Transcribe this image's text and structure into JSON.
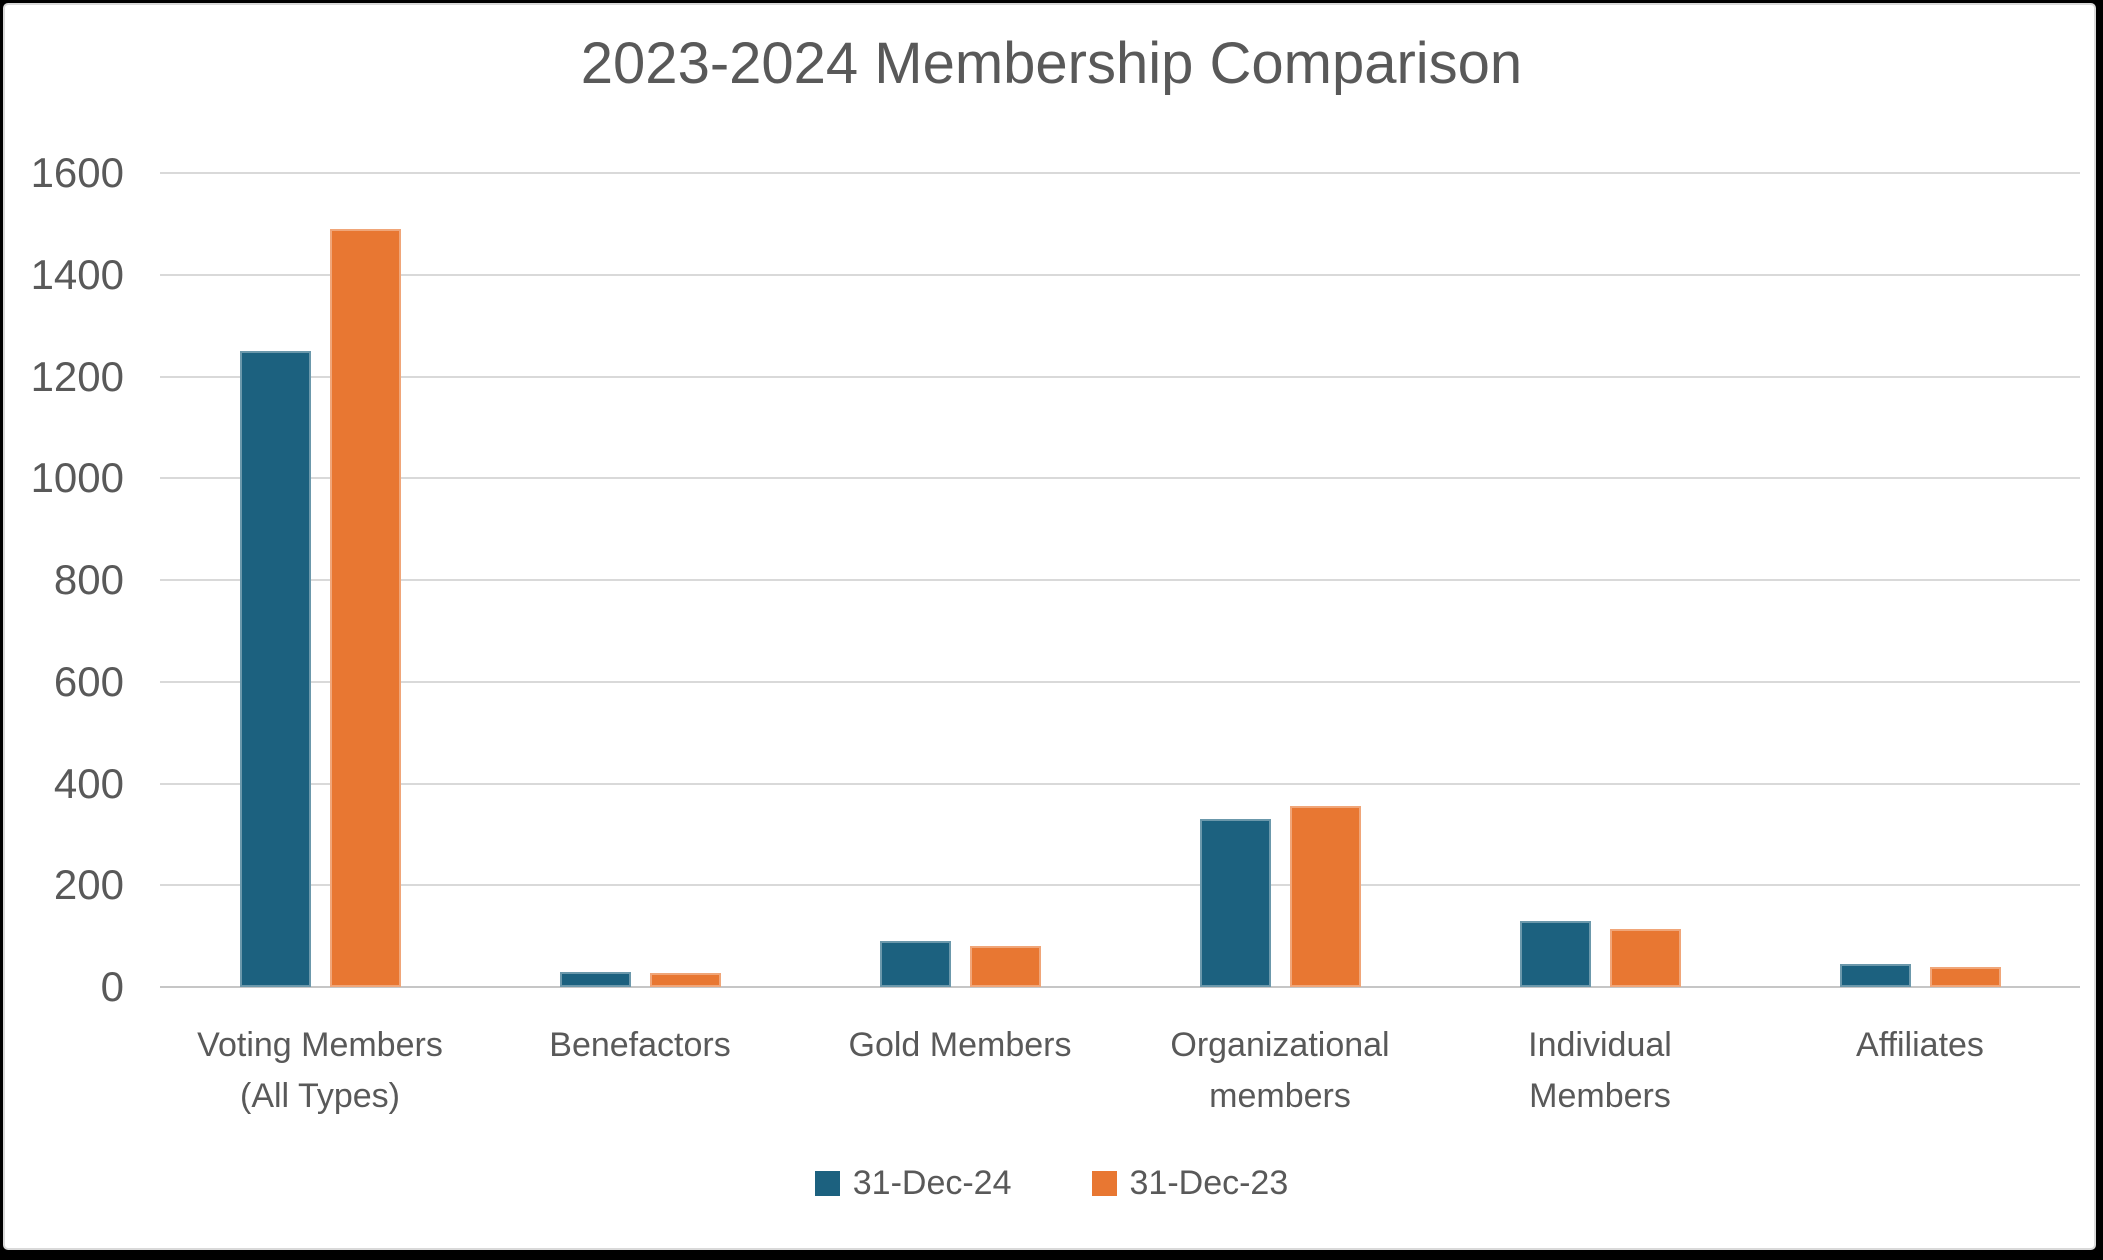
{
  "frame": {
    "background_color": "#000000",
    "panel_background": "#ffffff",
    "panel_border_color": "#d9d9d9"
  },
  "chart_data": {
    "type": "bar",
    "title": "2023-2024 Membership Comparison",
    "categories": [
      "Voting Members\n(All Types)",
      "Benefactors",
      "Gold Members",
      "Organizational\nmembers",
      "Individual\nMembers",
      "Affiliates"
    ],
    "series": [
      {
        "name": "31-Dec-24",
        "color": "#1c617f",
        "values": [
          1250,
          30,
          90,
          330,
          130,
          45
        ]
      },
      {
        "name": "31-Dec-23",
        "color": "#e87732",
        "values": [
          1490,
          28,
          80,
          355,
          115,
          40
        ]
      }
    ],
    "xlabel": "",
    "ylabel": "",
    "ylim": [
      0,
      1600
    ],
    "yticks": [
      0,
      200,
      400,
      600,
      800,
      1000,
      1200,
      1400,
      1600
    ],
    "grid": true,
    "gridline_color": "#d9d9d9",
    "text_color": "#595959",
    "legend_position": "bottom"
  }
}
